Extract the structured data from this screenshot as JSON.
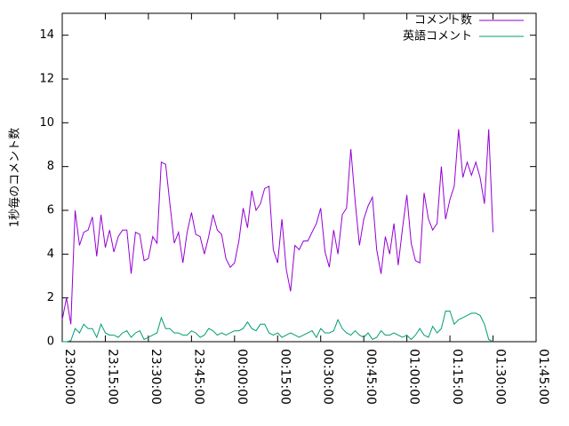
{
  "chart_data": {
    "type": "line",
    "ylabel": "1秒毎のコメント数",
    "x": [
      "23:00:00",
      "23:01:30",
      "23:03:00",
      "23:04:30",
      "23:06:00",
      "23:07:30",
      "23:09:00",
      "23:10:30",
      "23:12:00",
      "23:13:30",
      "23:15:00",
      "23:16:30",
      "23:18:00",
      "23:19:30",
      "23:21:00",
      "23:22:30",
      "23:24:00",
      "23:25:30",
      "23:27:00",
      "23:28:30",
      "23:30:00",
      "23:31:30",
      "23:33:00",
      "23:34:30",
      "23:36:00",
      "23:37:30",
      "23:39:00",
      "23:40:30",
      "23:42:00",
      "23:43:30",
      "23:45:00",
      "23:46:30",
      "23:48:00",
      "23:49:30",
      "23:51:00",
      "23:52:30",
      "23:54:00",
      "23:55:30",
      "23:57:00",
      "23:58:30",
      "00:00:00",
      "00:01:30",
      "00:03:00",
      "00:04:30",
      "00:06:00",
      "00:07:30",
      "00:09:00",
      "00:10:30",
      "00:12:00",
      "00:13:30",
      "00:15:00",
      "00:16:30",
      "00:18:00",
      "00:19:30",
      "00:21:00",
      "00:22:30",
      "00:24:00",
      "00:25:30",
      "00:27:00",
      "00:28:30",
      "00:30:00",
      "00:31:30",
      "00:33:00",
      "00:34:30",
      "00:36:00",
      "00:37:30",
      "00:39:00",
      "00:40:30",
      "00:42:00",
      "00:43:30",
      "00:45:00",
      "00:46:30",
      "00:48:00",
      "00:49:30",
      "00:51:00",
      "00:52:30",
      "00:54:00",
      "00:55:30",
      "00:57:00",
      "00:58:30",
      "01:00:00",
      "01:01:30",
      "01:03:00",
      "01:04:30",
      "01:06:00",
      "01:07:30",
      "01:09:00",
      "01:10:30",
      "01:12:00",
      "01:13:30",
      "01:15:00",
      "01:16:30",
      "01:18:00",
      "01:19:30",
      "01:21:00",
      "01:22:30",
      "01:24:00",
      "01:25:30",
      "01:27:00",
      "01:28:30",
      "01:30:00"
    ],
    "series": [
      {
        "name": "コメント数",
        "color": "#9400d3",
        "values": [
          1,
          2,
          0.8,
          6,
          4.4,
          5,
          5.1,
          5.7,
          3.9,
          5.8,
          4.3,
          5.1,
          4.1,
          4.8,
          5.1,
          5.1,
          3.1,
          5,
          4.9,
          3.7,
          3.8,
          4.8,
          4.5,
          8.2,
          8.1,
          6.3,
          4.5,
          5,
          3.6,
          5,
          5.9,
          4.9,
          4.8,
          4,
          4.8,
          5.8,
          5.1,
          4.9,
          3.8,
          3.4,
          3.6,
          4.6,
          6.1,
          5.2,
          6.9,
          6,
          6.3,
          7,
          7.1,
          4.2,
          3.6,
          5.6,
          3.3,
          2.3,
          4.4,
          4.2,
          4.6,
          4.6,
          5,
          5.4,
          6.1,
          4.1,
          3.4,
          5.1,
          4,
          5.8,
          6.1,
          8.8,
          6.4,
          4.4,
          5.6,
          6.2,
          6.6,
          4.2,
          3.1,
          4.8,
          4,
          5.4,
          3.5,
          5.2,
          6.7,
          4.5,
          3.7,
          3.6,
          6.8,
          5.6,
          5.1,
          5.4,
          8,
          5.6,
          6.5,
          7.1,
          9.7,
          7.5,
          8.2,
          7.6,
          8.2,
          7.5,
          6.3,
          9.7,
          5
        ]
      },
      {
        "name": "英語コメント",
        "color": "#009e73",
        "values": [
          0,
          0,
          0.05,
          0.6,
          0.4,
          0.8,
          0.6,
          0.6,
          0.2,
          0.8,
          0.4,
          0.3,
          0.3,
          0.2,
          0.4,
          0.5,
          0.2,
          0.4,
          0.5,
          0.1,
          0.2,
          0.3,
          0.4,
          1.1,
          0.6,
          0.6,
          0.4,
          0.4,
          0.3,
          0.3,
          0.5,
          0.4,
          0.2,
          0.3,
          0.6,
          0.5,
          0.3,
          0.4,
          0.3,
          0.4,
          0.5,
          0.5,
          0.6,
          0.9,
          0.6,
          0.5,
          0.8,
          0.8,
          0.4,
          0.3,
          0.4,
          0.2,
          0.3,
          0.4,
          0.3,
          0.2,
          0.3,
          0.4,
          0.5,
          0.2,
          0.6,
          0.4,
          0.4,
          0.5,
          1.0,
          0.6,
          0.4,
          0.3,
          0.5,
          0.3,
          0.2,
          0.4,
          0.1,
          0.2,
          0.5,
          0.3,
          0.3,
          0.4,
          0.3,
          0.2,
          0.3,
          0.1,
          0.3,
          0.6,
          0.3,
          0.2,
          0.7,
          0.4,
          0.6,
          1.4,
          1.4,
          0.8,
          1.0,
          1.1,
          1.2,
          1.3,
          1.3,
          1.2,
          0.8,
          0.1,
          0
        ]
      }
    ],
    "xlim": [
      "23:00:00",
      "01:45:00"
    ],
    "xticks": [
      "23:00:00",
      "23:15:00",
      "23:30:00",
      "23:45:00",
      "00:00:00",
      "00:15:00",
      "00:30:00",
      "00:45:00",
      "01:00:00",
      "01:15:00",
      "01:30:00",
      "01:45:00"
    ],
    "ylim": [
      0,
      15
    ],
    "yticks": [
      0,
      2,
      4,
      6,
      8,
      10,
      12,
      14
    ],
    "legend": "upper right",
    "grid": false
  }
}
